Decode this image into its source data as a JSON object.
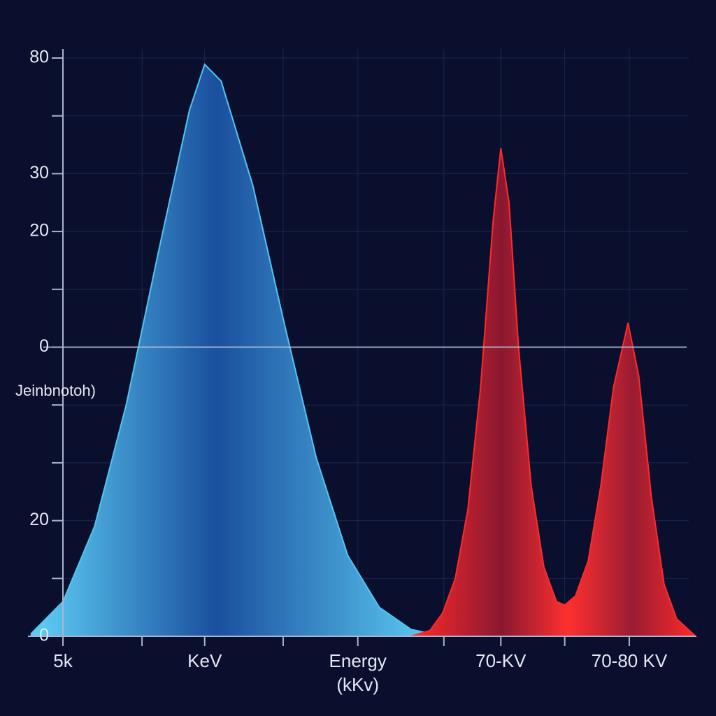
{
  "chart_data": {
    "type": "area",
    "y_label": "Jeinbnotoh)",
    "xlim": [
      -5,
      100
    ],
    "ylim": [
      0,
      10
    ],
    "grid": true,
    "reference_line": 5,
    "xticks": [
      {
        "value": 0,
        "label": "5k"
      },
      {
        "value": 12.5,
        "label": null
      },
      {
        "value": 22.4,
        "label": "KeV"
      },
      {
        "value": 34.8,
        "label": null
      },
      {
        "value": 46.6,
        "label": "Energy (kKv)"
      },
      {
        "value": 60.2,
        "label": null
      },
      {
        "value": 69.2,
        "label": "70-KV"
      },
      {
        "value": 79.3,
        "label": null
      },
      {
        "value": 89.5,
        "label": "70-80 KV"
      }
    ],
    "yticks": [
      {
        "value": 0,
        "label": "0"
      },
      {
        "value": 1,
        "label": null
      },
      {
        "value": 2,
        "label": "20"
      },
      {
        "value": 3,
        "label": null
      },
      {
        "value": 4,
        "label": null
      },
      {
        "value": 5,
        "label": "0"
      },
      {
        "value": 6,
        "label": null
      },
      {
        "value": 7,
        "label": "20"
      },
      {
        "value": 8,
        "label": "30"
      },
      {
        "value": 9,
        "label": null
      },
      {
        "value": 10,
        "label": "80"
      }
    ],
    "series": [
      {
        "color": "#4fc6f2",
        "x": [
          -5,
          0,
          5,
          10,
          15,
          20,
          22.4,
          25,
          30,
          35,
          40,
          45,
          50,
          55,
          60
        ],
        "values": [
          0.05,
          0.6,
          1.9,
          4.0,
          6.6,
          9.1,
          9.89,
          9.6,
          7.8,
          5.4,
          3.1,
          1.4,
          0.5,
          0.12,
          0
        ]
      },
      {
        "color": "#ff2a2a",
        "x": [
          55,
          58,
          60,
          62,
          64,
          66,
          68,
          69.2,
          70.5,
          72,
          74,
          76,
          78,
          79.3,
          81,
          83,
          85,
          87,
          89.3,
          91,
          93,
          95,
          97,
          100
        ],
        "values": [
          0,
          0.1,
          0.4,
          1.0,
          2.2,
          4.3,
          7.2,
          8.44,
          7.5,
          5.0,
          2.6,
          1.2,
          0.6,
          0.54,
          0.7,
          1.3,
          2.6,
          4.3,
          5.42,
          4.5,
          2.4,
          0.9,
          0.3,
          0
        ]
      }
    ]
  }
}
